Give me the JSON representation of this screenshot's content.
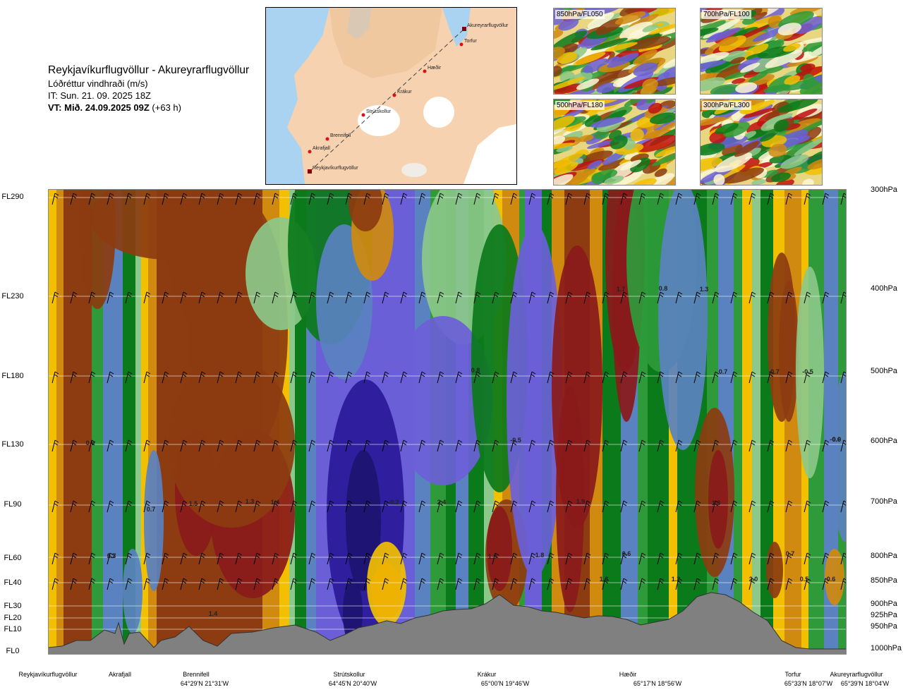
{
  "header": {
    "route": "Reykjavíkurflugvöllur - Akureyrarflugvöllur",
    "parameter": "Lóðréttur vindhraði (m/s)",
    "it": "IT: Sun. 21. 09. 2025 18Z",
    "vt_bold": "VT: Mið. 24.09.2025 09Z",
    "vt_offset": "(+63 h)"
  },
  "map": {
    "points": [
      "Akureyrarflugvöllur",
      "Torfur",
      "Hæðir",
      "Krákur",
      "Strútskollur",
      "Brennifell",
      "Akrafjall",
      "Reykjavíkurflugvöllur"
    ]
  },
  "panels": [
    {
      "label": "850hPa/FL050"
    },
    {
      "label": "700hPa/FL100"
    },
    {
      "label": "500hPa/FL180"
    },
    {
      "label": "300hPa/FL300"
    }
  ],
  "chart_data": {
    "type": "heatmap",
    "title": "Reykjavíkurflugvöllur - Akureyrarflugvöllur",
    "subtitle": "Lóðréttur vindhraði (m/s)",
    "left_axis_ticks": [
      "FL290",
      "FL230",
      "FL180",
      "FL130",
      "FL90",
      "FL60",
      "FL40",
      "FL30",
      "FL20",
      "FL10",
      "FL0"
    ],
    "right_axis_ticks": [
      "300hPa",
      "400hPa",
      "500hPa",
      "600hPa",
      "700hPa",
      "800hPa",
      "850hPa",
      "900hPa",
      "925hPa",
      "950hPa",
      "1000hPa"
    ],
    "locations": [
      {
        "name": "Reykjavíkurflugvöllur",
        "coord": ""
      },
      {
        "name": "Akrafjall",
        "coord": ""
      },
      {
        "name": "Brennifell",
        "coord": "64°29'N 21°31'W"
      },
      {
        "name": "Strútskollur",
        "coord": "64°45'N 20°40'W"
      },
      {
        "name": "Krákur",
        "coord": "65°00'N 19°46'W"
      },
      {
        "name": "Hæðir",
        "coord": "65°17'N 18°56'W"
      },
      {
        "name": "Torfur",
        "coord": "65°33'N 18°07'W"
      },
      {
        "name": "Akureyrarflugvöllur",
        "coord": "65°39'N 18°04'W"
      }
    ],
    "value_labels": [
      "0.9",
      "0.7",
      "1.3",
      "0.7",
      "1.5",
      "1.3",
      "1.4",
      "1.4",
      "-0.2",
      "2.4",
      "0.8",
      "-0.5",
      "1.0",
      "1.8",
      "1.9",
      "1.7",
      "0.8",
      "1.3",
      "0.7",
      "0.6",
      "1.3",
      "1.2",
      "1.3",
      "2.0",
      "0.7",
      "-0.7",
      "0.5",
      "-0.5",
      "0.6",
      "-0.6",
      "0.0"
    ],
    "colors": {
      "strong_down": "#1c1470",
      "down2": "#2a1a9a",
      "down": "#6b5fd8",
      "weak_down": "#5a82c0",
      "green_dark": "#0b7a1a",
      "green": "#2e9a3a",
      "green_light": "#8cc88a",
      "green_pale": "#d2ecc8",
      "neutral": "#fbf7d8",
      "yellow": "#f2c000",
      "orange": "#d08a10",
      "brown": "#8c3c10",
      "dark_red": "#8a1a1a",
      "red": "#c01010",
      "terrain": "#808080"
    }
  }
}
